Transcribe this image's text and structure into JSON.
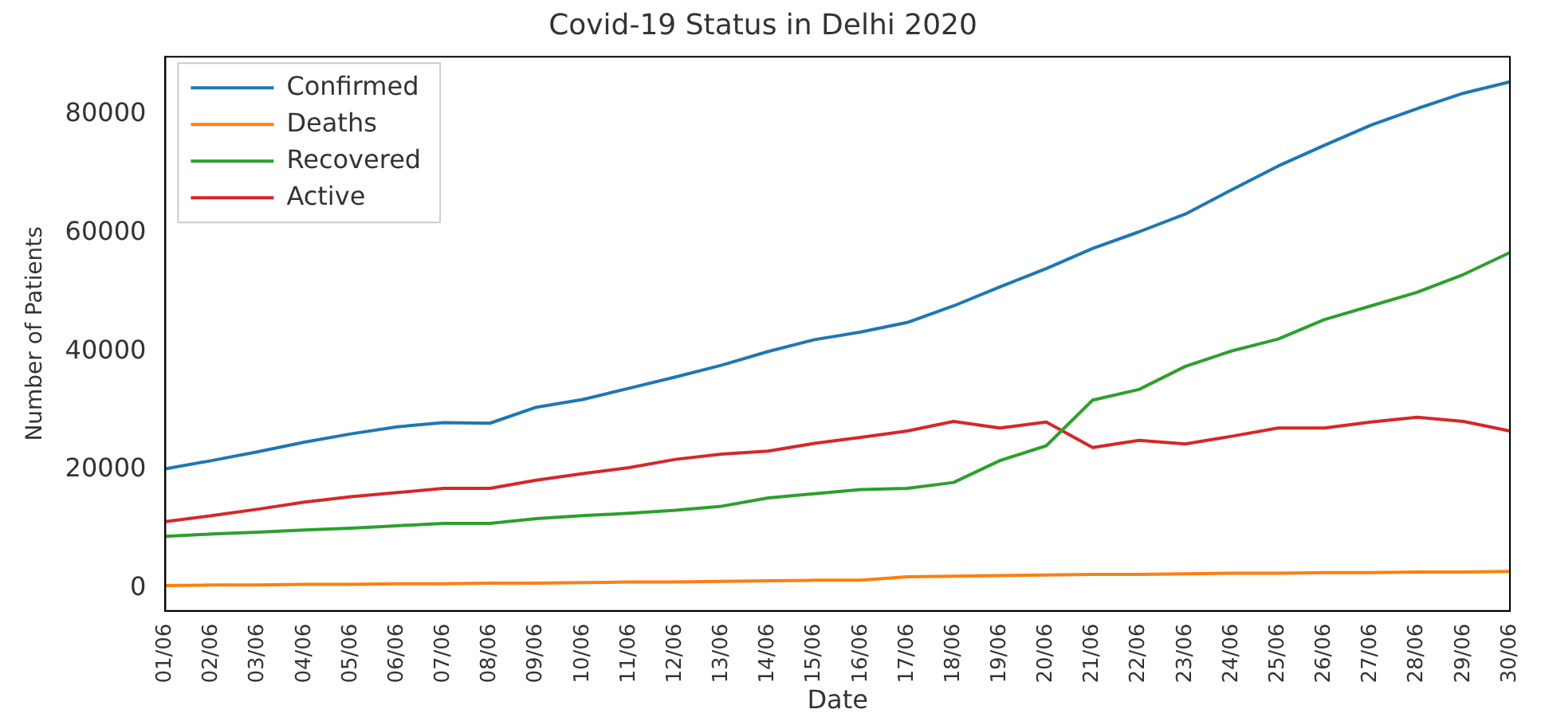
{
  "chart_data": {
    "type": "line",
    "title": "Covid-19 Status in Delhi 2020",
    "xlabel": "Date",
    "ylabel": "Number of Patients",
    "categories": [
      "01/06",
      "02/06",
      "03/06",
      "04/06",
      "05/06",
      "06/06",
      "07/06",
      "08/06",
      "09/06",
      "10/06",
      "11/06",
      "12/06",
      "13/06",
      "14/06",
      "15/06",
      "16/06",
      "17/06",
      "18/06",
      "19/06",
      "20/06",
      "21/06",
      "22/06",
      "23/06",
      "24/06",
      "25/06",
      "26/06",
      "27/06",
      "28/06",
      "29/06",
      "30/06"
    ],
    "series": [
      {
        "name": "Confirmed",
        "color": "#1f77b4",
        "values": [
          20200,
          21600,
          23100,
          24700,
          26100,
          27300,
          28000,
          27900,
          30600,
          31900,
          33800,
          35700,
          37700,
          40000,
          42000,
          43300,
          44900,
          47700,
          50900,
          54000,
          57400,
          60200,
          63200,
          67300,
          71300,
          74800,
          78200,
          81000,
          83600,
          85500
        ]
      },
      {
        "name": "Deaths",
        "color": "#ff7f0e",
        "values": [
          500,
          600,
          600,
          700,
          700,
          800,
          800,
          900,
          900,
          1000,
          1100,
          1100,
          1200,
          1300,
          1400,
          1400,
          2000,
          2100,
          2200,
          2300,
          2400,
          2400,
          2500,
          2600,
          2600,
          2700,
          2700,
          2800,
          2800,
          2900
        ]
      },
      {
        "name": "Recovered",
        "color": "#2ca02c",
        "values": [
          8800,
          9200,
          9500,
          9900,
          10200,
          10600,
          11000,
          11000,
          11800,
          12300,
          12700,
          13200,
          13900,
          15300,
          16000,
          16700,
          16900,
          17900,
          21600,
          24100,
          31800,
          33600,
          37500,
          40100,
          42100,
          45400,
          47700,
          50000,
          53000,
          56700
        ]
      },
      {
        "name": "Active",
        "color": "#d62728",
        "values": [
          11300,
          12300,
          13400,
          14600,
          15500,
          16200,
          16900,
          16900,
          18300,
          19400,
          20400,
          21800,
          22700,
          23200,
          24500,
          25500,
          26600,
          28200,
          27100,
          28100,
          23800,
          25000,
          24400,
          25700,
          27100,
          27100,
          28100,
          28900,
          28200,
          26600
        ]
      }
    ],
    "ylim": [
      -3750,
      89750
    ],
    "yticks": [
      0,
      20000,
      40000,
      60000,
      80000
    ],
    "grid": false,
    "legend": "top left",
    "marker": "none",
    "line_style": "solid"
  }
}
